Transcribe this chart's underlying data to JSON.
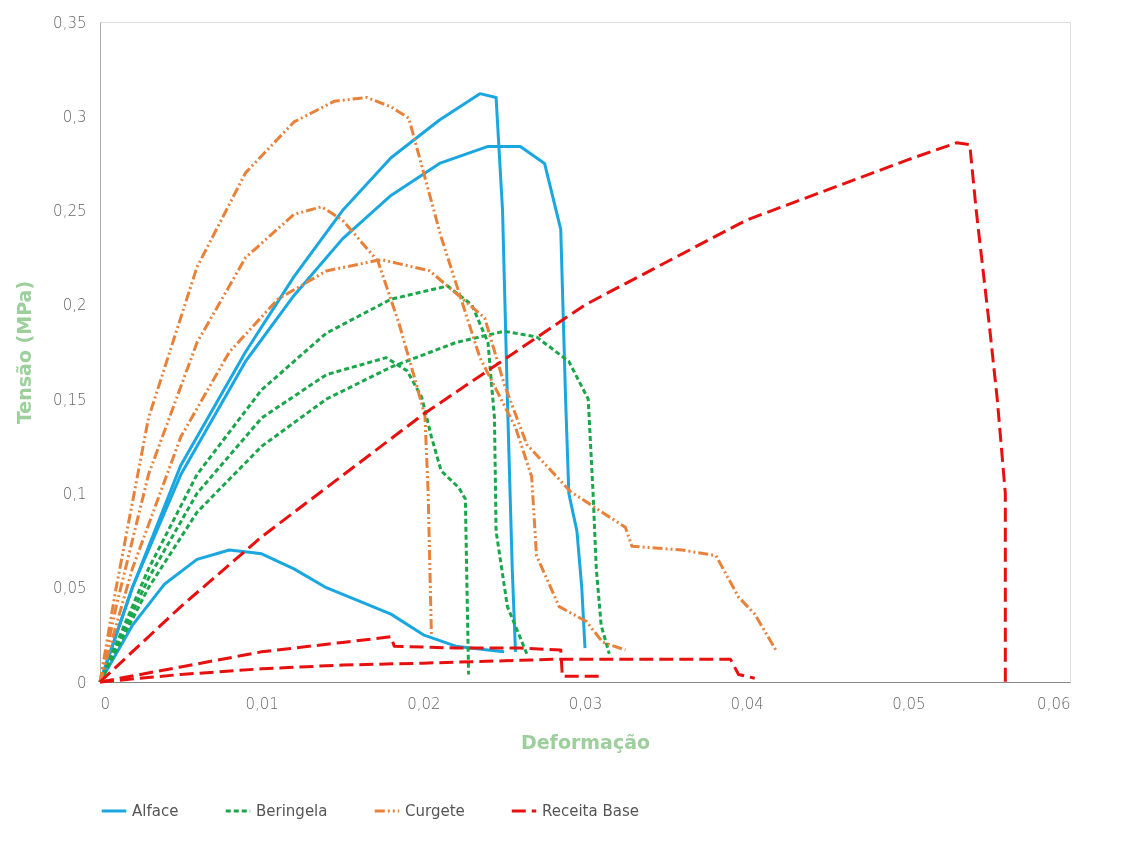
{
  "chart_data": {
    "type": "line",
    "xlabel": "Deformação",
    "ylabel": "Tensão (MPa)",
    "xlim": [
      0,
      0.06
    ],
    "ylim": [
      0,
      0.35
    ],
    "xticks": [
      0,
      {
        "value": 0.01,
        "label": "0,01"
      },
      {
        "value": 0.02,
        "label": "0,02"
      },
      {
        "value": 0.03,
        "label": "0,03"
      },
      {
        "value": 0.04,
        "label": "0,04"
      },
      {
        "value": 0.05,
        "label": "0,05"
      },
      {
        "value": 0.06,
        "label": "0,06"
      }
    ],
    "yticks": [
      0,
      {
        "value": 0.05,
        "label": "0,05"
      },
      {
        "value": 0.1,
        "label": "0,1"
      },
      {
        "value": 0.15,
        "label": "0,15"
      },
      {
        "value": 0.2,
        "label": "0,2"
      },
      {
        "value": 0.25,
        "label": "0,25"
      },
      {
        "value": 0.3,
        "label": "0,3"
      },
      {
        "value": 0.35,
        "label": "0,35"
      }
    ],
    "grid": false,
    "legend": "bottom",
    "marker": "none",
    "series": [
      {
        "name": "Alface",
        "color": "#1aa7e0",
        "line_style": "solid",
        "x": [
          0,
          0.002,
          0.005,
          0.009,
          0.012,
          0.015,
          0.018,
          0.021,
          0.0235,
          0.0245,
          0.0249,
          0.0252,
          0.0255,
          0.0257
        ],
        "values": [
          0,
          0.05,
          0.115,
          0.175,
          0.215,
          0.25,
          0.278,
          0.298,
          0.312,
          0.31,
          0.25,
          0.15,
          0.06,
          0.016
        ]
      },
      {
        "color": "#1aa7e0",
        "line_style": "solid",
        "x": [
          0,
          0.002,
          0.005,
          0.009,
          0.012,
          0.015,
          0.018,
          0.021,
          0.024,
          0.026,
          0.0275,
          0.0285,
          0.0288,
          0.029,
          0.0295,
          0.0298,
          0.03
        ],
        "values": [
          0,
          0.05,
          0.11,
          0.17,
          0.205,
          0.235,
          0.258,
          0.275,
          0.284,
          0.284,
          0.275,
          0.24,
          0.15,
          0.1,
          0.08,
          0.05,
          0.018
        ]
      },
      {
        "color": "#1aa7e0",
        "line_style": "solid",
        "x": [
          0,
          0.002,
          0.004,
          0.006,
          0.008,
          0.01,
          0.012,
          0.014,
          0.016,
          0.018,
          0.02,
          0.022,
          0.024,
          0.025
        ],
        "values": [
          0,
          0.03,
          0.052,
          0.065,
          0.07,
          0.068,
          0.06,
          0.05,
          0.043,
          0.036,
          0.025,
          0.019,
          0.017,
          0.016
        ]
      },
      {
        "name": "Beringela",
        "color": "#1aa64a",
        "line_style": "dashed",
        "x": [
          0,
          0.003,
          0.006,
          0.01,
          0.014,
          0.018,
          0.0215,
          0.023,
          0.024,
          0.0244,
          0.0245,
          0.0252,
          0.0264
        ],
        "values": [
          0,
          0.06,
          0.11,
          0.155,
          0.185,
          0.203,
          0.21,
          0.2,
          0.18,
          0.14,
          0.08,
          0.04,
          0.015
        ]
      },
      {
        "color": "#1aa64a",
        "line_style": "dashed",
        "x": [
          0,
          0.003,
          0.006,
          0.01,
          0.014,
          0.018,
          0.022,
          0.025,
          0.027,
          0.029,
          0.0302,
          0.0305,
          0.0307,
          0.031,
          0.0315
        ],
        "values": [
          0,
          0.05,
          0.09,
          0.125,
          0.15,
          0.167,
          0.18,
          0.186,
          0.183,
          0.17,
          0.15,
          0.1,
          0.06,
          0.03,
          0.015
        ]
      },
      {
        "color": "#1aa64a",
        "line_style": "dashed",
        "x": [
          0,
          0.003,
          0.006,
          0.01,
          0.014,
          0.0177,
          0.019,
          0.0199,
          0.0205,
          0.0211,
          0.0222,
          0.0226,
          0.0227,
          0.0228
        ],
        "values": [
          0,
          0.055,
          0.1,
          0.14,
          0.163,
          0.172,
          0.165,
          0.151,
          0.13,
          0.112,
          0.103,
          0.097,
          0.05,
          0.004
        ]
      },
      {
        "name": "Curgete",
        "color": "#e8823a",
        "line_style": "dashdotdot",
        "x": [
          0,
          0.001,
          0.003,
          0.006,
          0.009,
          0.012,
          0.0145,
          0.0165,
          0.018,
          0.0191,
          0.0211,
          0.0235,
          0.0257,
          0.0267,
          0.027,
          0.0284,
          0.0301,
          0.0311,
          0.0325
        ],
        "values": [
          0,
          0.05,
          0.14,
          0.22,
          0.27,
          0.297,
          0.308,
          0.31,
          0.305,
          0.299,
          0.236,
          0.172,
          0.135,
          0.109,
          0.067,
          0.04,
          0.032,
          0.021,
          0.017
        ]
      },
      {
        "color": "#e8823a",
        "line_style": "dashdotdot",
        "x": [
          0,
          0.001,
          0.003,
          0.006,
          0.009,
          0.012,
          0.0137,
          0.015,
          0.0172,
          0.0185,
          0.0195,
          0.0201,
          0.0203,
          0.0205
        ],
        "values": [
          0,
          0.04,
          0.11,
          0.18,
          0.225,
          0.248,
          0.252,
          0.245,
          0.223,
          0.19,
          0.16,
          0.141,
          0.1,
          0.025
        ]
      },
      {
        "color": "#e8823a",
        "line_style": "dashdotdot",
        "x": [
          0,
          0.002,
          0.005,
          0.008,
          0.011,
          0.014,
          0.0174,
          0.0204,
          0.0238,
          0.025,
          0.0264,
          0.0291,
          0.0325,
          0.0329,
          0.036,
          0.0381,
          0.0395,
          0.0405,
          0.0418
        ],
        "values": [
          0,
          0.06,
          0.13,
          0.175,
          0.203,
          0.218,
          0.224,
          0.218,
          0.193,
          0.158,
          0.126,
          0.101,
          0.082,
          0.072,
          0.07,
          0.067,
          0.045,
          0.036,
          0.017
        ]
      },
      {
        "name": "Receita Base",
        "color": "#e8100f",
        "line_style": "longdash",
        "x": [
          0,
          0.005,
          0.01,
          0.02,
          0.03,
          0.04,
          0.05,
          0.053,
          0.0538,
          0.0542,
          0.055,
          0.0555,
          0.056,
          0.056
        ],
        "values": [
          0,
          0.04,
          0.077,
          0.142,
          0.2,
          0.245,
          0.277,
          0.286,
          0.285,
          0.25,
          0.19,
          0.15,
          0.1,
          0
        ]
      },
      {
        "color": "#e8100f",
        "line_style": "longdash",
        "x": [
          0,
          0.005,
          0.01,
          0.015,
          0.018,
          0.0182,
          0.022,
          0.026,
          0.0285,
          0.0286,
          0.031
        ],
        "values": [
          0,
          0.008,
          0.016,
          0.021,
          0.024,
          0.019,
          0.018,
          0.018,
          0.017,
          0.003,
          0.003
        ]
      },
      {
        "color": "#e8100f",
        "line_style": "longdash",
        "x": [
          0,
          0.005,
          0.01,
          0.015,
          0.02,
          0.028,
          0.029,
          0.035,
          0.039,
          0.0395,
          0.0405
        ],
        "values": [
          0,
          0.004,
          0.007,
          0.009,
          0.01,
          0.012,
          0.012,
          0.012,
          0.012,
          0.004,
          0.002
        ]
      }
    ]
  }
}
